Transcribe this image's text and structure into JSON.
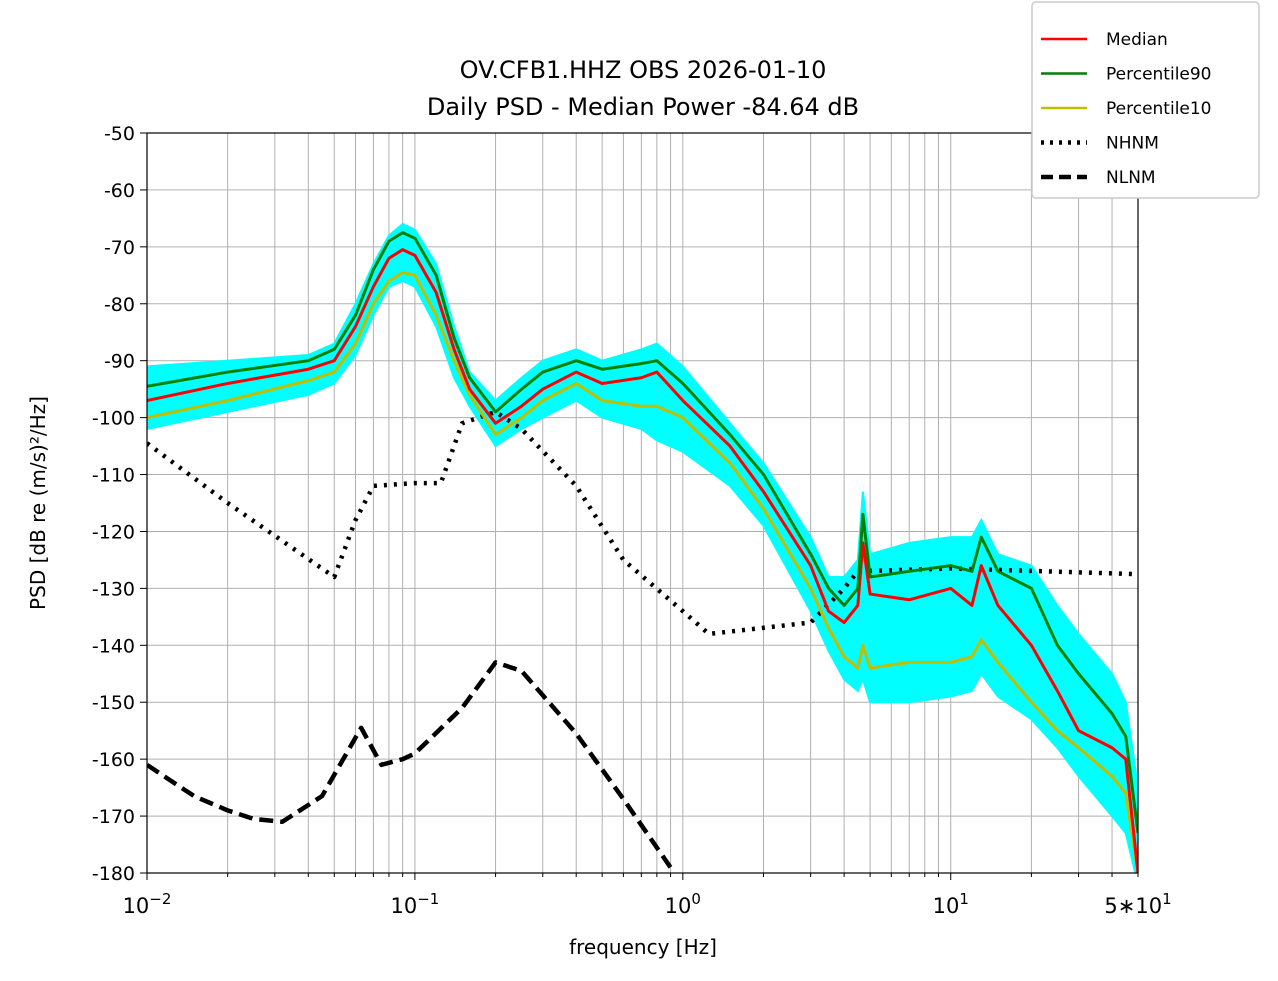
{
  "chart_data": {
    "type": "line",
    "title": "OV.CFB1.HHZ OBS 2026-01-10",
    "subtitle": "Daily PSD - Median Power -84.64 dB",
    "xlabel": "frequency [Hz]",
    "ylabel": "PSD [dB re (m/s)²/Hz]",
    "xscale": "log",
    "xlim": [
      0.01,
      50
    ],
    "ylim": [
      -180,
      -50
    ],
    "grid": true,
    "legend_placement": "outside-top-right",
    "x_ticks": [
      {
        "value": 0.01,
        "base": "10",
        "exp": "−2",
        "prefix": ""
      },
      {
        "value": 0.1,
        "base": "10",
        "exp": "−1",
        "prefix": ""
      },
      {
        "value": 1,
        "base": "10",
        "exp": "0",
        "prefix": ""
      },
      {
        "value": 10,
        "base": "10",
        "exp": "1",
        "prefix": ""
      },
      {
        "value": 50,
        "base": "10",
        "exp": "1",
        "prefix": "5∗"
      }
    ],
    "y_ticks": [
      "-50",
      "-60",
      "-70",
      "-80",
      "-90",
      "-100",
      "-110",
      "-120",
      "-130",
      "-140",
      "-150",
      "-160",
      "-170",
      "-180"
    ],
    "envelope": {
      "name": "individual PSDs",
      "color": "#00ffff",
      "x": [
        0.01,
        0.02,
        0.04,
        0.05,
        0.06,
        0.07,
        0.08,
        0.09,
        0.1,
        0.12,
        0.14,
        0.16,
        0.2,
        0.25,
        0.3,
        0.4,
        0.5,
        0.7,
        0.8,
        1.0,
        1.5,
        2,
        3,
        3.5,
        4,
        4.5,
        4.7,
        5,
        7,
        10,
        12,
        13,
        15,
        20,
        25,
        30,
        40,
        45,
        50
      ],
      "upper": [
        -91,
        -90,
        -89,
        -87,
        -80,
        -73,
        -68,
        -66,
        -67,
        -73,
        -84,
        -92,
        -97,
        -93,
        -90,
        -88,
        -90,
        -88,
        -87,
        -91,
        -101,
        -108,
        -121,
        -128,
        -128,
        -125,
        -113,
        -124,
        -122,
        -121,
        -121,
        -118,
        -124,
        -126,
        -133,
        -138,
        -145,
        -150,
        -165
      ],
      "lower": [
        -102,
        -99,
        -96,
        -94,
        -89,
        -82,
        -77,
        -76,
        -77,
        -84,
        -93,
        -98,
        -105,
        -102,
        -100,
        -97,
        -100,
        -102,
        -104,
        -106,
        -112,
        -119,
        -134,
        -141,
        -146,
        -148,
        -146,
        -150,
        -150,
        -149,
        -148,
        -145,
        -149,
        -153,
        -158,
        -163,
        -170,
        -173,
        -182
      ]
    },
    "series": [
      {
        "name": "Median",
        "color": "#ff0000",
        "style": "solid",
        "x": [
          0.01,
          0.02,
          0.04,
          0.05,
          0.06,
          0.07,
          0.08,
          0.09,
          0.1,
          0.12,
          0.14,
          0.16,
          0.2,
          0.25,
          0.3,
          0.4,
          0.5,
          0.7,
          0.8,
          1.0,
          1.5,
          2,
          3,
          3.5,
          4,
          4.5,
          4.7,
          5,
          7,
          10,
          12,
          13,
          15,
          20,
          25,
          30,
          40,
          45,
          50
        ],
        "y": [
          -97,
          -94,
          -91.5,
          -90,
          -84,
          -77,
          -72,
          -70.5,
          -71.5,
          -78,
          -88,
          -95,
          -101,
          -98,
          -95,
          -92,
          -94,
          -93,
          -92,
          -97,
          -105,
          -113,
          -126,
          -134,
          -136,
          -133,
          -122,
          -131,
          -132,
          -130,
          -133,
          -126,
          -133,
          -140,
          -148,
          -155,
          -158,
          -160,
          -180
        ]
      },
      {
        "name": "Percentile90",
        "color": "#008000",
        "style": "solid",
        "x": [
          0.01,
          0.02,
          0.04,
          0.05,
          0.06,
          0.07,
          0.08,
          0.09,
          0.1,
          0.12,
          0.14,
          0.16,
          0.2,
          0.25,
          0.3,
          0.4,
          0.5,
          0.7,
          0.8,
          1.0,
          1.5,
          2,
          3,
          3.5,
          4,
          4.5,
          4.7,
          5,
          7,
          10,
          12,
          13,
          15,
          20,
          25,
          30,
          40,
          45,
          50
        ],
        "y": [
          -94.5,
          -92,
          -90,
          -88,
          -82,
          -74,
          -69,
          -67.5,
          -68.5,
          -75,
          -86,
          -93,
          -99,
          -95,
          -92,
          -90,
          -91.5,
          -90.5,
          -90,
          -94,
          -103,
          -110,
          -124,
          -130,
          -133,
          -130,
          -117,
          -128,
          -127,
          -126,
          -127,
          -121,
          -127,
          -130,
          -140,
          -145,
          -152,
          -156,
          -173
        ]
      },
      {
        "name": "Percentile10",
        "color": "#bfbf00",
        "style": "solid",
        "x": [
          0.01,
          0.02,
          0.04,
          0.05,
          0.06,
          0.07,
          0.08,
          0.09,
          0.1,
          0.12,
          0.14,
          0.16,
          0.2,
          0.25,
          0.3,
          0.4,
          0.5,
          0.7,
          0.8,
          1.0,
          1.5,
          2,
          3,
          3.5,
          4,
          4.5,
          4.7,
          5,
          7,
          10,
          12,
          13,
          15,
          20,
          25,
          30,
          40,
          45,
          50
        ],
        "y": [
          -100,
          -97,
          -93.5,
          -92,
          -87,
          -80,
          -76,
          -74.5,
          -75,
          -82,
          -90,
          -96,
          -103,
          -100,
          -97,
          -94,
          -97,
          -98,
          -98,
          -100,
          -108,
          -116,
          -130,
          -137,
          -142,
          -144,
          -140,
          -144,
          -143,
          -143,
          -142,
          -139,
          -143,
          -150,
          -155,
          -158,
          -163,
          -166,
          -180
        ]
      },
      {
        "name": "NHNM",
        "color": "#000000",
        "style": "dotted",
        "x": [
          0.01,
          0.02,
          0.05,
          0.06,
          0.07,
          0.1,
          0.125,
          0.15,
          0.2,
          0.25,
          0.4,
          0.6,
          1.0,
          1.25,
          3,
          4,
          4.5,
          10,
          50
        ],
        "y": [
          -104.5,
          -115,
          -128,
          -118,
          -112,
          -111.5,
          -111.5,
          -101,
          -99,
          -102,
          -112,
          -125,
          -134,
          -138,
          -136,
          -130,
          -127,
          -126.5,
          -127.5
        ]
      },
      {
        "name": "NLNM",
        "color": "#000000",
        "style": "dashed",
        "x": [
          0.01,
          0.015,
          0.02,
          0.025,
          0.032,
          0.045,
          0.063,
          0.075,
          0.09,
          0.1,
          0.15,
          0.2,
          0.25,
          0.4,
          0.6,
          0.93
        ],
        "y": [
          -161,
          -166.5,
          -169,
          -170.5,
          -171,
          -166.5,
          -154.5,
          -161,
          -160,
          -159,
          -151,
          -143,
          -144.5,
          -155.5,
          -167,
          -180
        ]
      }
    ]
  }
}
